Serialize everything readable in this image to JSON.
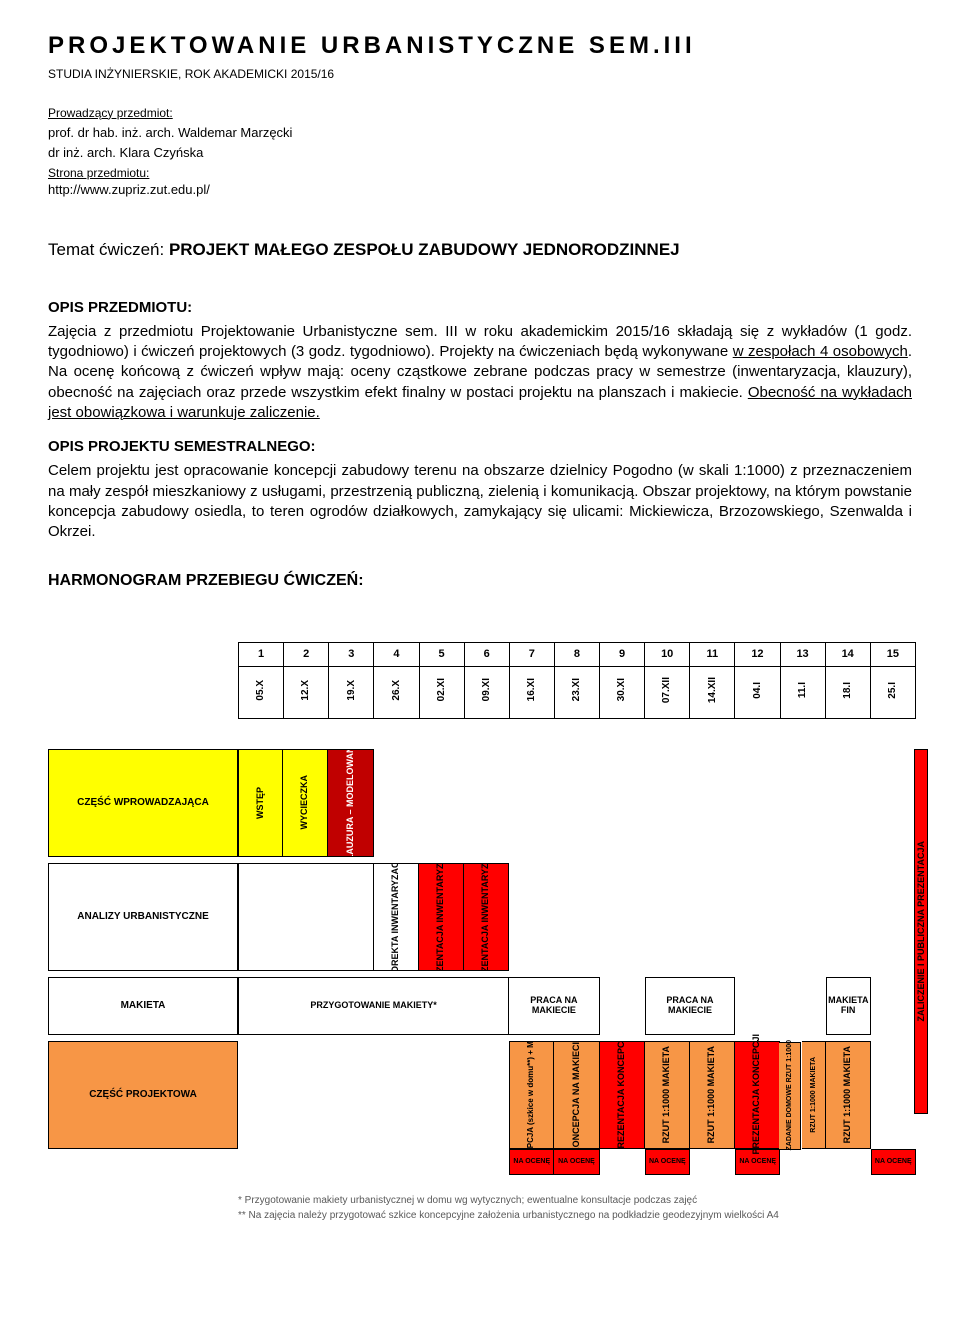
{
  "header": {
    "title": "PROJEKTOWANIE URBANISTYCZNE SEM.III",
    "subtitle": "STUDIA INŻYNIERSKIE, ROK AKADEMICKI 2015/16",
    "instructors_label": "Prowadzący przedmiot:",
    "instructor1": "prof. dr hab. inż. arch. Waldemar Marzęcki",
    "instructor2": "dr inż. arch. Klara Czyńska",
    "page_label": "Strona przedmiotu:",
    "url": "http://www.zupriz.zut.edu.pl/"
  },
  "topic": {
    "label": "Temat ćwiczeń: ",
    "value": "PROJEKT MAŁEGO ZESPOŁU ZABUDOWY JEDNORODZINNEJ"
  },
  "opis": {
    "head": "OPIS PRZEDMIOTU:",
    "p1a": "Zajęcia z przedmiotu Projektowanie Urbanistyczne sem. III w roku akademickim 2015/16 składają się z wykładów (1 godz. tygodniowo) i ćwiczeń projektowych (3 godz. tygodniowo). Projekty na ćwiczeniach będą wykonywane ",
    "p1u1": "w zespołach 4 osobowych",
    "p1b": ". Na ocenę końcową z ćwiczeń wpływ mają: oceny cząstkowe zebrane podczas pracy w semestrze (inwentaryzacja, klauzury), obecność na zajęciach oraz przede wszystkim efekt finalny w postaci projektu na planszach i makiecie. ",
    "p1u2": "Obecność na wykładach jest obowiązkowa i warunkuje zaliczenie.",
    "proj_head": "OPIS PROJEKTU SEMESTRALNEGO:",
    "proj_body": "Celem projektu jest opracowanie koncepcji zabudowy terenu na obszarze dzielnicy Pogodno (w skali 1:1000) z przeznaczeniem na mały zespół mieszkaniowy z usługami, przestrzenią publiczną, zielenią i komunikacją. Obszar projektowy, na którym powstanie koncepcja zabudowy osiedla, to teren ogrodów działkowych, zamykający się ulicami: Mickiewicza, Brzozowskiego, Szenwalda i Okrzei."
  },
  "harmonogram_head": "HARMONOGRAM PRZEBIEGU ĆWICZEŃ:",
  "schedule": {
    "numbers": [
      "1",
      "2",
      "3",
      "4",
      "5",
      "6",
      "7",
      "8",
      "9",
      "10",
      "11",
      "12",
      "13",
      "14",
      "15"
    ],
    "dates": [
      "05.X",
      "12.X",
      "19.X",
      "26.X",
      "02.XI",
      "09.XI",
      "16.XI",
      "23.XI",
      "30.XI",
      "07.XII",
      "14.XII",
      "04.I",
      "11.I",
      "18.I",
      "25.I"
    ]
  },
  "rows": {
    "r1": {
      "label": "CZĘŚĆ WPROWADZAJĄCA",
      "color": "#ffff00",
      "items": [
        "WSTĘP",
        "WYCIECZKA",
        "KLAUZURA – MODELOWANIE"
      ]
    },
    "r2": {
      "label": "ANALIZY URBANISTYCZNE",
      "items": {
        "c4": "KOREKTA INWENTARYZACJI",
        "c5": "PREZENTACJA INWENTARYZACJI",
        "c6": "PREZENTACJA INWENTARYZACJI"
      }
    },
    "r3": {
      "label": "MAKIETA",
      "prep": "PRZYGOTOWANIE MAKIETY*",
      "praca": "PRACA NA MAKIECIE",
      "fin": "MAKIETA FIN"
    },
    "r4": {
      "label": "CZĘŚĆ PROJEKTOWA",
      "color": "#f79646",
      "c7": "KONCEPCJA (szkice w domu**) + MAKIETA",
      "c8": "KONCEPCJA NA MAKIECIE",
      "c9": "PREZENTACJA KONCEPCJI",
      "c10": "RZUT 1:1000 MAKIETA",
      "c11": "RZUT 1:1000 MAKIETA",
      "c12": "PREZENTACJA KONCEPCJI",
      "c12b": "ZADANIE DOMOWE RZUT 1:1000",
      "c13": "RZUT 1:1000 MAKIETA",
      "c14": "RZUT 1:1000 MAKIETA"
    },
    "zalicz": "ZALICZENIE I PUBLICZNA PREZENTACJA",
    "na_ocene": "NA OCENĘ"
  },
  "footnotes": {
    "f1": "* Przygotowanie makiety urbanistycznej w domu wg wytycznych; ewentualne konsultacje podczas zajęć",
    "f2": "** Na zajęcia należy przygotować szkice koncepcyjne założenia urbanistycznego na podkładzie geodezyjnym wielkości A4"
  },
  "colors": {
    "yellow": "#ffff00",
    "orange": "#f79646",
    "red": "#ff0000",
    "darkred": "#c00000",
    "gray": "#d9d9d9"
  }
}
